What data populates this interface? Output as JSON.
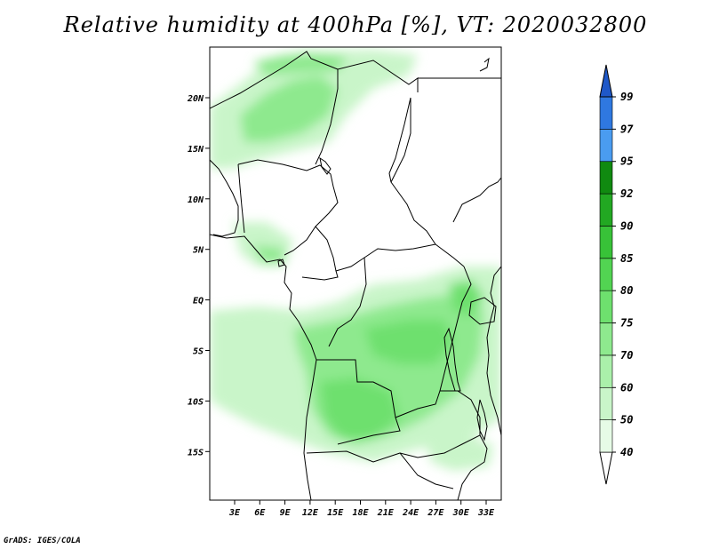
{
  "title": "Relative humidity at 400hPa [%], VT: 2020032800",
  "credit": "GrADS: IGES/COLA",
  "lat_labels": [
    "20N",
    "15N",
    "10N",
    "5N",
    "EQ",
    "5S",
    "10S",
    "15S"
  ],
  "lon_labels": [
    "3E",
    "6E",
    "9E",
    "12E",
    "15E",
    "18E",
    "21E",
    "24E",
    "27E",
    "30E",
    "33E"
  ],
  "colorbar": {
    "labels": [
      "40",
      "50",
      "60",
      "70",
      "75",
      "80",
      "85",
      "90",
      "92",
      "95",
      "97",
      "99"
    ],
    "colors": [
      "#ffffff",
      "#e6fbe6",
      "#c9f5c9",
      "#aaf0aa",
      "#8ee98e",
      "#6ee06e",
      "#52d452",
      "#38c238",
      "#22a822",
      "#108a10",
      "#4a9cf0",
      "#2f78e0",
      "#1f58c8"
    ]
  }
}
